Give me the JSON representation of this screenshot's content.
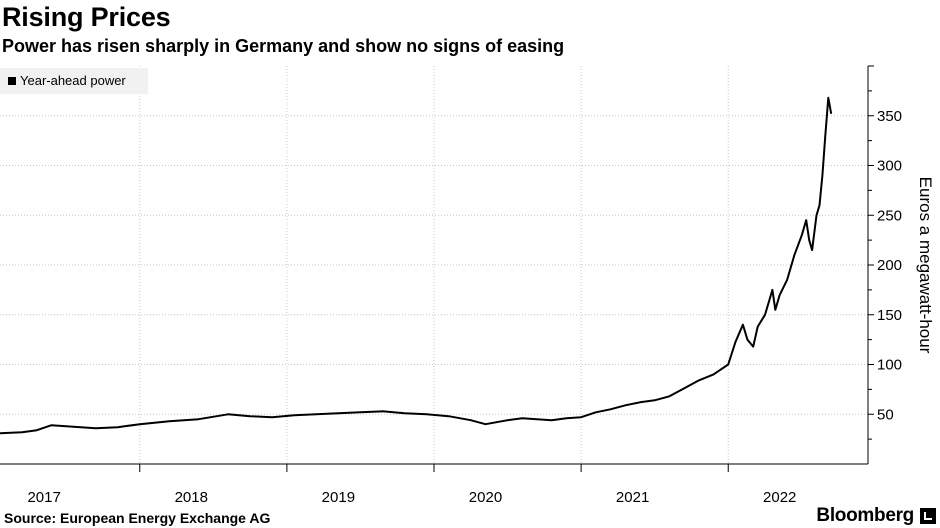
{
  "header": {
    "title": "Rising Prices",
    "subtitle": "Power has risen sharply in Germany and show no signs of easing"
  },
  "legend": {
    "label": "Year-ahead power"
  },
  "footer": {
    "source": "Source: European Energy Exchange AG",
    "brand": "Bloomberg"
  },
  "colors": {
    "line": "#000000",
    "grid": "#c8c8c8",
    "legend_bg": "#f1f1f1"
  },
  "chart_data": {
    "type": "line",
    "title": "Rising Prices",
    "subtitle": "Power has risen sharply in Germany and show no signs of easing",
    "xlabel": "",
    "ylabel": "Euros a megawatt-hour",
    "xlim": [
      2016.55,
      2022.45
    ],
    "ylim": [
      0,
      400
    ],
    "x_ticks": [
      2017,
      2018,
      2019,
      2020,
      2021,
      2022
    ],
    "x_tick_labels": [
      "2017",
      "2018",
      "2019",
      "2020",
      "2021",
      "2022"
    ],
    "y_ticks": [
      50,
      100,
      150,
      200,
      250,
      300,
      350
    ],
    "y_tick_labels": [
      "50",
      "100",
      "150",
      "200",
      "250",
      "300",
      "350"
    ],
    "grid": true,
    "legend_position": "top-left",
    "series": [
      {
        "name": "Year-ahead power",
        "x": [
          2016.55,
          2016.7,
          2016.8,
          2016.9,
          2017.0,
          2017.2,
          2017.35,
          2017.5,
          2017.7,
          2017.9,
          2018.1,
          2018.25,
          2018.4,
          2018.55,
          2018.7,
          2018.85,
          2019.0,
          2019.15,
          2019.3,
          2019.45,
          2019.6,
          2019.75,
          2019.85,
          2020.0,
          2020.1,
          2020.2,
          2020.3,
          2020.4,
          2020.5,
          2020.6,
          2020.7,
          2020.8,
          2020.9,
          2021.0,
          2021.1,
          2021.2,
          2021.3,
          2021.4,
          2021.5,
          2021.55,
          2021.6,
          2021.63,
          2021.67,
          2021.7,
          2021.75,
          2021.8,
          2021.82,
          2021.85,
          2021.9,
          2021.95,
          2022.0,
          2022.03,
          2022.05,
          2022.07,
          2022.1,
          2022.12,
          2022.14,
          2022.16,
          2022.18,
          2022.2
        ],
        "values": [
          31,
          32,
          34,
          39,
          38,
          36,
          37,
          40,
          43,
          45,
          50,
          48,
          47,
          49,
          50,
          51,
          52,
          53,
          51,
          50,
          48,
          44,
          40,
          44,
          46,
          45,
          44,
          46,
          47,
          52,
          55,
          59,
          62,
          64,
          68,
          76,
          84,
          90,
          100,
          123,
          140,
          125,
          118,
          138,
          150,
          175,
          155,
          170,
          185,
          210,
          230,
          245,
          225,
          215,
          250,
          260,
          290,
          330,
          368,
          352
        ]
      }
    ]
  }
}
